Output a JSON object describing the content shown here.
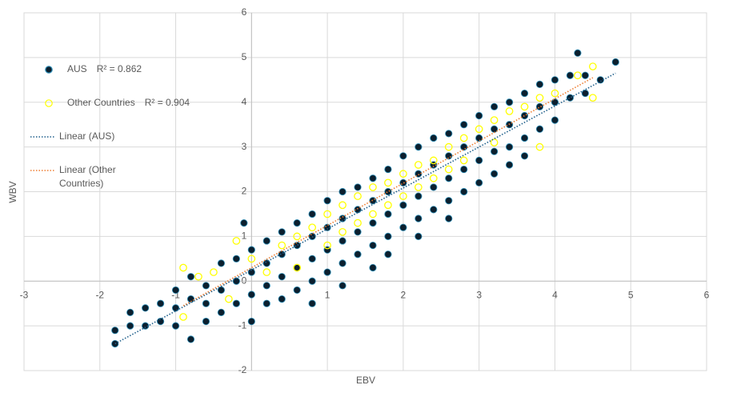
{
  "chart_data": {
    "type": "scatter",
    "xlabel": "EBV",
    "ylabel": "WBV",
    "xlim": [
      -3,
      6
    ],
    "xticks": [
      -3,
      -2,
      -1,
      0,
      1,
      2,
      3,
      4,
      5,
      6
    ],
    "ylim": [
      -2,
      6
    ],
    "yticks": [
      -2,
      -1,
      0,
      1,
      2,
      3,
      4,
      5,
      6
    ],
    "grid": true,
    "legend": "left",
    "series": [
      {
        "name": "AUS",
        "color": "#0b1f2e",
        "edge": "#2f8fb8",
        "x": [
          -1.8,
          -1.8,
          -1.6,
          -1.6,
          -1.4,
          -1.4,
          -1.2,
          -1.2,
          -1.0,
          -1.0,
          -1.0,
          -0.8,
          -0.8,
          -0.8,
          -0.6,
          -0.6,
          -0.6,
          -0.4,
          -0.4,
          -0.4,
          -0.2,
          -0.2,
          -0.2,
          0,
          0,
          0,
          0,
          -0.1,
          0.2,
          0.2,
          0.2,
          0.2,
          0.4,
          0.4,
          0.4,
          0.4,
          0.6,
          0.6,
          0.6,
          0.6,
          0.8,
          0.8,
          0.8,
          0.8,
          0.8,
          1.0,
          1.0,
          1.0,
          1.0,
          1.2,
          1.2,
          1.2,
          1.2,
          1.2,
          1.4,
          1.4,
          1.4,
          1.4,
          1.6,
          1.6,
          1.6,
          1.6,
          1.6,
          1.8,
          1.8,
          1.8,
          1.8,
          1.8,
          2.0,
          2.0,
          2.0,
          2.0,
          2.2,
          2.2,
          2.2,
          2.2,
          2.2,
          2.4,
          2.4,
          2.4,
          2.4,
          2.6,
          2.6,
          2.6,
          2.6,
          2.6,
          2.8,
          2.8,
          2.8,
          2.8,
          3.0,
          3.0,
          3.0,
          3.0,
          3.2,
          3.2,
          3.2,
          3.2,
          3.4,
          3.4,
          3.4,
          3.4,
          3.6,
          3.6,
          3.6,
          3.6,
          3.8,
          3.8,
          3.8,
          4.0,
          4.0,
          4.0,
          4.2,
          4.2,
          4.3,
          4.4,
          4.4,
          4.6,
          4.8
        ],
        "values": [
          -1.1,
          -1.4,
          -0.7,
          -1.0,
          -0.6,
          -1.0,
          -0.5,
          -0.9,
          -0.2,
          -0.6,
          -1.0,
          0.1,
          -0.4,
          -1.3,
          -0.1,
          -0.5,
          -0.9,
          0.4,
          -0.2,
          -0.7,
          0.5,
          0.0,
          -0.5,
          0.7,
          0.2,
          -0.3,
          -0.9,
          1.3,
          0.9,
          0.4,
          -0.1,
          -0.5,
          1.1,
          0.6,
          0.1,
          -0.4,
          1.3,
          0.8,
          0.3,
          -0.2,
          1.5,
          1.0,
          0.5,
          0.0,
          -0.5,
          1.8,
          1.2,
          0.7,
          0.2,
          2.0,
          1.4,
          0.9,
          0.4,
          -0.1,
          2.1,
          1.6,
          1.1,
          0.6,
          2.3,
          1.8,
          1.3,
          0.8,
          0.3,
          2.5,
          2.0,
          1.5,
          1.0,
          0.6,
          2.8,
          2.2,
          1.7,
          1.2,
          3.0,
          2.4,
          1.9,
          1.4,
          1.0,
          3.2,
          2.6,
          2.1,
          1.6,
          3.3,
          2.8,
          2.3,
          1.8,
          1.4,
          3.5,
          3.0,
          2.5,
          2.0,
          3.7,
          3.2,
          2.7,
          2.2,
          3.9,
          3.4,
          2.9,
          2.4,
          4.0,
          3.5,
          3.0,
          2.6,
          4.2,
          3.7,
          3.2,
          2.8,
          4.4,
          3.9,
          3.4,
          4.5,
          4.0,
          3.6,
          4.6,
          4.1,
          5.1,
          4.6,
          4.2,
          4.5,
          4.9
        ]
      },
      {
        "name": "Other Countries",
        "color": "#ffff00",
        "x": [
          -0.9,
          -0.7,
          -0.9,
          -0.5,
          -0.3,
          0,
          0.2,
          0.4,
          0.6,
          0.8,
          1.0,
          1.0,
          1.2,
          1.2,
          1.4,
          1.4,
          1.6,
          1.6,
          1.8,
          1.8,
          2.0,
          2.0,
          2.2,
          2.2,
          2.4,
          2.4,
          2.6,
          2.6,
          2.8,
          2.8,
          3.0,
          3.2,
          3.2,
          3.4,
          3.6,
          3.8,
          3.8,
          4.0,
          4.3,
          4.5,
          4.5,
          -0.2,
          0.6
        ],
        "values": [
          0.3,
          0.1,
          -0.8,
          0.2,
          -0.4,
          0.5,
          0.2,
          0.8,
          1.0,
          1.2,
          1.5,
          0.8,
          1.7,
          1.1,
          1.9,
          1.3,
          2.1,
          1.5,
          2.2,
          1.7,
          2.4,
          1.9,
          2.6,
          2.1,
          2.7,
          2.3,
          3.0,
          2.5,
          3.2,
          2.7,
          3.4,
          3.6,
          3.1,
          3.8,
          3.9,
          3.0,
          4.1,
          4.2,
          4.6,
          4.8,
          4.1,
          0.9,
          0.3
        ]
      }
    ],
    "annotations": [
      "R² = 0.862",
      "R² = 0.904"
    ],
    "trendlines": [
      {
        "name": "Linear (AUS)",
        "color": "#1f5f8b",
        "x": [
          -1.8,
          4.8
        ],
        "values": [
          -1.4,
          4.65
        ]
      },
      {
        "name": "Linear (Other Countries)",
        "color": "#ed7d31",
        "x": [
          -0.9,
          4.5
        ],
        "values": [
          -0.55,
          4.55
        ]
      }
    ]
  }
}
